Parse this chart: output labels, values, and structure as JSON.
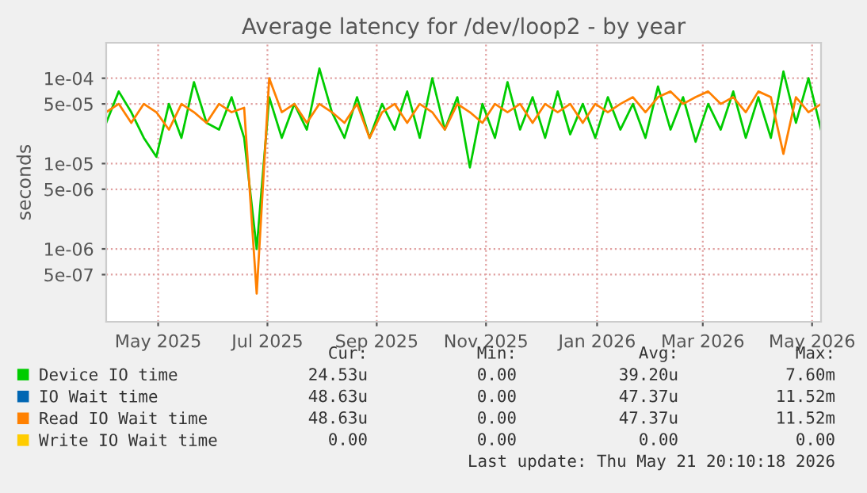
{
  "chart_data": {
    "type": "line",
    "title": "Average latency for /dev/loop2 - by year",
    "ylabel": "seconds",
    "log": "y",
    "grid": true,
    "legend": "bottom",
    "marker": "none",
    "line_style": "solid",
    "x": [
      "2025-04-17",
      "2025-04-24",
      "2025-05-01",
      "2025-05-08",
      "2025-05-15",
      "2025-05-22",
      "2025-05-29",
      "2025-06-05",
      "2025-06-12",
      "2025-06-19",
      "2025-06-26",
      "2025-07-03",
      "2025-07-10",
      "2025-07-17",
      "2025-07-24",
      "2025-07-31",
      "2025-08-07",
      "2025-08-14",
      "2025-08-21",
      "2025-08-28",
      "2025-09-04",
      "2025-09-11",
      "2025-09-18",
      "2025-09-25",
      "2025-10-02",
      "2025-10-09",
      "2025-10-16",
      "2025-10-23",
      "2025-10-30",
      "2025-11-06",
      "2025-11-13",
      "2025-11-20",
      "2025-11-27",
      "2025-12-04",
      "2025-12-11",
      "2025-12-18",
      "2025-12-25",
      "2026-01-01",
      "2026-01-08",
      "2026-01-15",
      "2026-01-22",
      "2026-01-29",
      "2026-02-05",
      "2026-02-12",
      "2026-02-19",
      "2026-02-26",
      "2026-03-05",
      "2026-03-12",
      "2026-03-19",
      "2026-03-26",
      "2026-04-02",
      "2026-04-09",
      "2026-04-16",
      "2026-04-23",
      "2026-04-30",
      "2026-05-07",
      "2026-05-14",
      "2026-05-21"
    ],
    "series": [
      {
        "name": "Device IO time",
        "color": "#00cc00",
        "values": [
          3e-05,
          7e-05,
          4e-05,
          2e-05,
          1.2e-05,
          5e-05,
          2e-05,
          9e-05,
          3e-05,
          2.5e-05,
          6e-05,
          2e-05,
          1e-06,
          6e-05,
          2e-05,
          5e-05,
          2.5e-05,
          0.00013,
          4e-05,
          2e-05,
          6e-05,
          2e-05,
          5e-05,
          2.5e-05,
          7e-05,
          2e-05,
          0.0001,
          2.5e-05,
          6e-05,
          9e-06,
          5e-05,
          2e-05,
          9e-05,
          2.5e-05,
          6e-05,
          2e-05,
          7e-05,
          2.2e-05,
          5e-05,
          2e-05,
          6e-05,
          2.5e-05,
          5e-05,
          2e-05,
          8e-05,
          2.5e-05,
          6e-05,
          1.8e-05,
          5e-05,
          2.5e-05,
          7e-05,
          2e-05,
          6e-05,
          2e-05,
          0.00012,
          3e-05,
          0.0001,
          2.5e-05
        ]
      },
      {
        "name": "IO Wait time",
        "color": "#0066b3",
        "values": [
          null,
          null,
          null,
          null,
          null,
          null,
          null,
          null,
          null,
          null,
          null,
          null,
          null,
          null,
          null,
          null,
          null,
          null,
          null,
          null,
          null,
          null,
          null,
          null,
          null,
          null,
          null,
          null,
          null,
          null,
          null,
          null,
          null,
          null,
          null,
          null,
          null,
          null,
          null,
          null,
          null,
          null,
          null,
          null,
          null,
          null,
          null,
          null,
          null,
          null,
          null,
          null,
          null,
          null,
          null,
          null,
          null,
          null
        ]
      },
      {
        "name": "Read IO Wait time",
        "color": "#ff8000",
        "values": [
          4e-05,
          5e-05,
          3e-05,
          5e-05,
          4e-05,
          2.5e-05,
          5e-05,
          4e-05,
          3e-05,
          5e-05,
          4e-05,
          4.5e-05,
          3e-07,
          0.0001,
          4e-05,
          5e-05,
          3e-05,
          5e-05,
          4e-05,
          3e-05,
          5e-05,
          2e-05,
          4e-05,
          5e-05,
          3e-05,
          5e-05,
          4e-05,
          2.5e-05,
          5e-05,
          4e-05,
          3e-05,
          5e-05,
          4e-05,
          5e-05,
          3e-05,
          5e-05,
          4e-05,
          5e-05,
          3e-05,
          5e-05,
          4e-05,
          5e-05,
          6e-05,
          4e-05,
          6e-05,
          7e-05,
          5e-05,
          6e-05,
          7e-05,
          5e-05,
          6e-05,
          4e-05,
          7e-05,
          6e-05,
          1.3e-05,
          6e-05,
          4e-05,
          5e-05
        ]
      },
      {
        "name": "Write IO Wait time",
        "color": "#ffcc00",
        "values": [
          null,
          null,
          null,
          null,
          null,
          null,
          null,
          null,
          null,
          null,
          null,
          null,
          null,
          null,
          null,
          null,
          null,
          null,
          null,
          null,
          null,
          null,
          null,
          null,
          null,
          null,
          null,
          null,
          null,
          null,
          null,
          null,
          null,
          null,
          null,
          null,
          null,
          null,
          null,
          null,
          null,
          null,
          null,
          null,
          null,
          null,
          null,
          null,
          null,
          null,
          null,
          null,
          null,
          null,
          null,
          null,
          null,
          null
        ]
      }
    ],
    "xlim": [
      "2025-04-17",
      "2026-05-21"
    ],
    "xticks": [
      {
        "value": "2025-05-16",
        "label": "May 2025"
      },
      {
        "value": "2025-07-16",
        "label": "Jul 2025"
      },
      {
        "value": "2025-09-15",
        "label": "Sep 2025"
      },
      {
        "value": "2025-11-15",
        "label": "Nov 2025"
      },
      {
        "value": "2026-01-16",
        "label": "Jan 2026"
      },
      {
        "value": "2026-03-16",
        "label": "Mar 2026"
      },
      {
        "value": "2026-05-16",
        "label": "May 2026"
      }
    ],
    "ylim": [
      1.4e-07,
      0.00026
    ],
    "yticks": [
      {
        "value": 5e-07,
        "label": "5e-07"
      },
      {
        "value": 1e-06,
        "label": "1e-06"
      },
      {
        "value": 5e-06,
        "label": "5e-06"
      },
      {
        "value": 1e-05,
        "label": "1e-05"
      },
      {
        "value": 5e-05,
        "label": "5e-05"
      },
      {
        "value": 0.0001,
        "label": "1e-04"
      }
    ],
    "annotations": [
      "Cur:",
      "Min:",
      "Avg:",
      "Max:",
      "24.53u",
      "0.00",
      "39.20u",
      "7.60m",
      "48.63u",
      "0.00",
      "47.37u",
      "11.52m",
      "48.63u",
      "0.00",
      "47.37u",
      "11.52m",
      "0.00",
      "0.00",
      "0.00",
      "0.00",
      "Last update: Thu May 21 20:10:18 2026"
    ]
  }
}
